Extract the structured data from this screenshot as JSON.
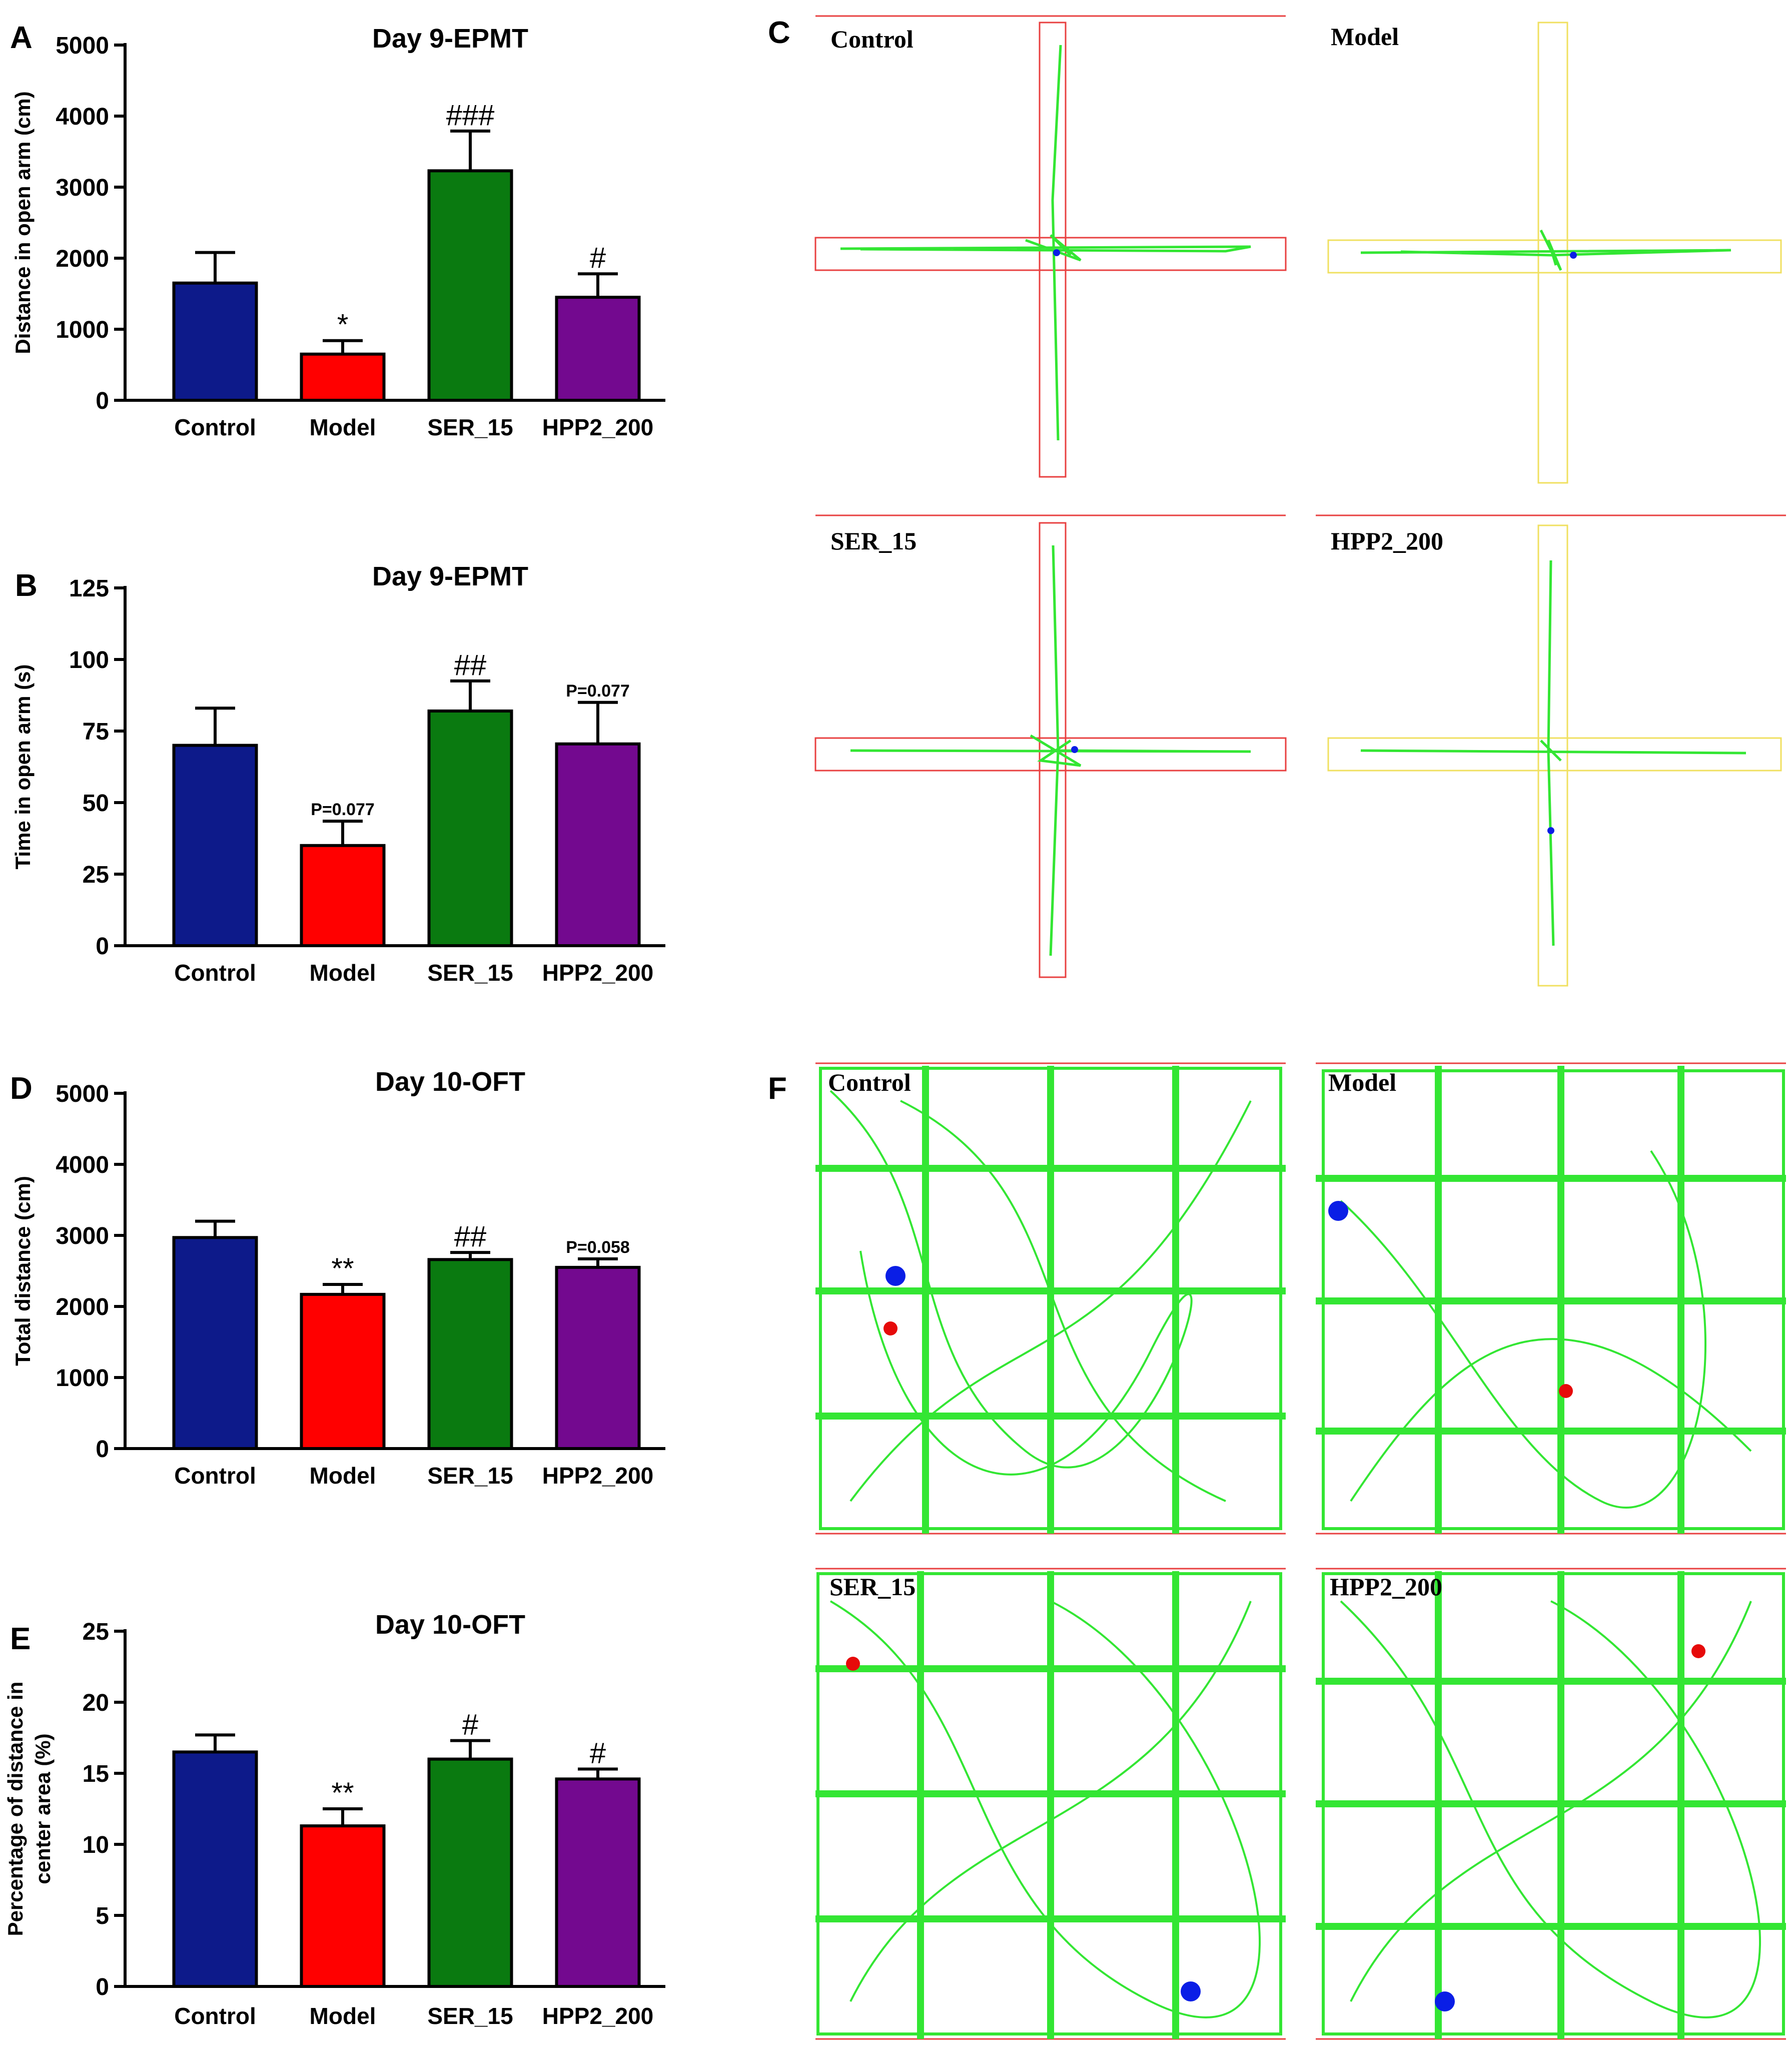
{
  "panels": {
    "a": "A",
    "b": "B",
    "c": "C",
    "d": "D",
    "e": "E",
    "f": "F"
  },
  "colors": {
    "control": "#0d1a8a",
    "model": "#ff0000",
    "ser": "#0a7a10",
    "hpp": "#73098f",
    "track": "#33e633",
    "epm_red": "#e84040",
    "epm_yellow": "#f0e060",
    "dot_blue": "#0a1ee6",
    "dot_red": "#e60a0a"
  },
  "chart_data": [
    {
      "id": "A",
      "type": "bar",
      "title": "Day 9-EPMT",
      "ylabel": "Distance in open arm (cm)",
      "ylim": [
        0,
        5000
      ],
      "yticks": [
        "0",
        "1000",
        "2000",
        "3000",
        "4000",
        "5000"
      ],
      "categories": [
        "Control",
        "Model",
        "SER_15",
        "HPP2_200"
      ],
      "values": [
        1650,
        650,
        3230,
        1450
      ],
      "errors": [
        430,
        190,
        560,
        330
      ],
      "annotations": [
        "",
        "*",
        "###",
        "#"
      ]
    },
    {
      "id": "B",
      "type": "bar",
      "title": "Day 9-EPMT",
      "ylabel": "Time in open arm (s)",
      "ylim": [
        0,
        125
      ],
      "yticks": [
        "0",
        "25",
        "50",
        "75",
        "100",
        "125"
      ],
      "categories": [
        "Control",
        "Model",
        "SER_15",
        "HPP2_200"
      ],
      "values": [
        70,
        35,
        82,
        70.5
      ],
      "errors": [
        13,
        8.5,
        10.5,
        14.5
      ],
      "annotations": [
        "",
        "P=0.077",
        "##",
        "P=0.077"
      ]
    },
    {
      "id": "D",
      "type": "bar",
      "title": "Day 10-OFT",
      "ylabel": "Total distance (cm)",
      "ylim": [
        0,
        5000
      ],
      "yticks": [
        "0",
        "1000",
        "2000",
        "3000",
        "4000",
        "5000"
      ],
      "categories": [
        "Control",
        "Model",
        "SER_15",
        "HPP2_200"
      ],
      "values": [
        2970,
        2170,
        2660,
        2550
      ],
      "errors": [
        230,
        140,
        100,
        120
      ],
      "annotations": [
        "",
        "**",
        "##",
        "P=0.058"
      ]
    },
    {
      "id": "E",
      "type": "bar",
      "title": "Day 10-OFT",
      "ylabel": "Percentage of distance in center area (%)",
      "ylabel_lines": [
        "Percentage of distance in",
        "center area (%)"
      ],
      "ylim": [
        0,
        25
      ],
      "yticks": [
        "0",
        "5",
        "10",
        "15",
        "20",
        "25"
      ],
      "categories": [
        "Control",
        "Model",
        "SER_15",
        "HPP2_200"
      ],
      "values": [
        16.5,
        11.3,
        16.0,
        14.6
      ],
      "errors": [
        1.2,
        1.2,
        1.3,
        0.7
      ],
      "annotations": [
        "",
        "**",
        "#",
        "#"
      ]
    }
  ],
  "tracks_epm": {
    "control": "Control",
    "model": "Model",
    "ser": "SER_15",
    "hpp": "HPP2_200"
  },
  "tracks_oft": {
    "control": "Control",
    "model": "Model",
    "ser": "SER_15",
    "hpp": "HPP2_200"
  }
}
